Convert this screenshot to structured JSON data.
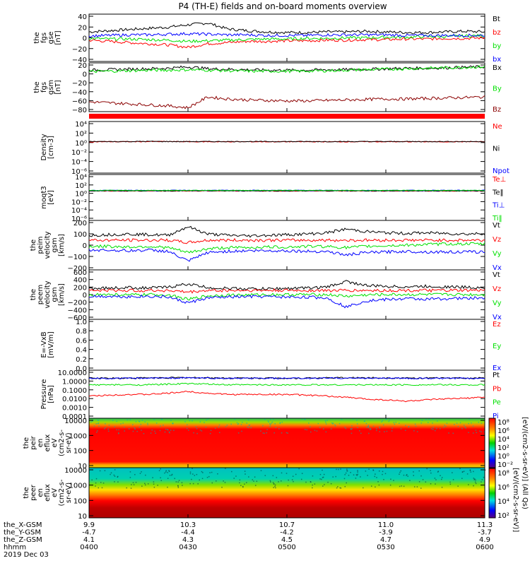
{
  "title": "P4 (TH-E) fields and on-board moments overview",
  "date_label": "2019 Dec 03",
  "x_axis": {
    "ephemeris": [
      {
        "label": "the_X-GSM",
        "values": [
          "9.9",
          "10.3",
          "10.7",
          "11.0",
          "11.3"
        ]
      },
      {
        "label": "the_Y-GSM",
        "values": [
          "-4.7",
          "-4.4",
          "-4.2",
          "-3.9",
          "-3.7"
        ]
      },
      {
        "label": "the_Z-GSM",
        "values": [
          "4.1",
          "4.3",
          "4.5",
          "4.7",
          "4.9"
        ]
      },
      {
        "label": "hhmm",
        "values": [
          "0400",
          "0430",
          "0500",
          "0530",
          "0600"
        ]
      }
    ]
  },
  "colorbar": {
    "label": "[eV/(cm2-s-sr-eV)] (All Qs)",
    "label2": "[eV/(cm2-s-sr-eV)]",
    "ticks_top": [
      "10⁸",
      "10⁶",
      "10⁴",
      "10²",
      "10⁰",
      "10⁻²"
    ],
    "ticks_bottom": [
      "10⁸",
      "10⁶",
      "10⁴",
      "10²"
    ]
  },
  "colors": {
    "black": "#000000",
    "red": "#ff0000",
    "green": "#00e000",
    "blue": "#0000ff",
    "darkred": "#8b0000"
  },
  "chart_data": [
    {
      "id": "fgs_gse",
      "type": "line",
      "ylabel": [
        "the",
        "fgs",
        "gse",
        "[nT]"
      ],
      "ylim": [
        -40,
        40
      ],
      "yticks": [
        "40",
        "20",
        "0",
        "−20",
        "−40"
      ],
      "series": [
        {
          "name": "Bt",
          "color": "black",
          "values": [
            10,
            12,
            14,
            16,
            18,
            22,
            25,
            15,
            12,
            10,
            9,
            9,
            10,
            10,
            11,
            10,
            9,
            9,
            10,
            11,
            10
          ]
        },
        {
          "name": "bz",
          "color": "red",
          "values": [
            -4,
            -6,
            -8,
            -10,
            -12,
            -16,
            -10,
            -8,
            -6,
            -6,
            -5,
            -5,
            -4,
            -4,
            -3,
            -3,
            -2,
            -2,
            -1,
            -1,
            0
          ]
        },
        {
          "name": "by",
          "color": "green",
          "values": [
            -1,
            -2,
            -2,
            -3,
            -4,
            -6,
            -5,
            -4,
            -3,
            -2,
            -2,
            -1,
            -1,
            0,
            0,
            1,
            1,
            2,
            2,
            3,
            4
          ]
        },
        {
          "name": "bx",
          "color": "blue",
          "values": [
            3,
            4,
            5,
            5,
            6,
            7,
            6,
            5,
            5,
            4,
            4,
            4,
            5,
            5,
            5,
            5,
            4,
            4,
            4,
            4,
            4
          ]
        }
      ]
    },
    {
      "id": "fgs_gsm",
      "type": "line",
      "ylabel": [
        "the",
        "fgs",
        "gsm",
        "[nT]"
      ],
      "ylim": [
        -80,
        20
      ],
      "yticks": [
        "20",
        "0",
        "−20",
        "−40",
        "−60",
        "−80"
      ],
      "series": [
        {
          "name": "Bx",
          "color": "black",
          "values": [
            5,
            6,
            7,
            8,
            9,
            12,
            8,
            7,
            6,
            5,
            5,
            5,
            6,
            6,
            7,
            8,
            9,
            9,
            10,
            11,
            12
          ]
        },
        {
          "name": "By",
          "color": "green",
          "values": [
            2,
            3,
            4,
            5,
            5,
            6,
            5,
            4,
            3,
            3,
            3,
            3,
            4,
            5,
            6,
            7,
            8,
            9,
            10,
            11,
            12
          ]
        },
        {
          "name": "Bz",
          "color": "darkred",
          "values": [
            -60,
            -62,
            -64,
            -66,
            -68,
            -72,
            -50,
            -54,
            -56,
            -57,
            -58,
            -58,
            -57,
            -56,
            -55,
            -54,
            -54,
            -53,
            -52,
            -51,
            -50
          ]
        }
      ]
    },
    {
      "id": "density",
      "type": "line",
      "ylabel": [
        "Density",
        "[cm-3]"
      ],
      "log": true,
      "ylim": [
        -6,
        4
      ],
      "yticks": [
        "10⁴",
        "10²",
        "10⁰",
        "10⁻²",
        "10⁻⁴",
        "10⁻⁶"
      ],
      "series": [
        {
          "name": "Ne",
          "color": "red",
          "values": [
            1.2,
            1.2,
            1.2,
            1.3,
            1.3,
            1.2,
            1.2,
            1.2,
            1.2,
            1.2,
            1.2,
            1.2,
            1.2,
            1.2,
            1.2,
            1.2,
            1.2,
            1.2,
            1.2,
            1.2,
            1.2
          ]
        },
        {
          "name": "Ni",
          "color": "black",
          "values": [
            1.3,
            1.3,
            1.3,
            1.4,
            1.3,
            1.3,
            1.3,
            1.3,
            1.3,
            1.3,
            1.3,
            1.3,
            1.3,
            1.3,
            1.3,
            1.3,
            1.3,
            1.3,
            1.3,
            1.3,
            1.3
          ]
        },
        {
          "name": "Npot",
          "color": "blue",
          "values": []
        }
      ]
    },
    {
      "id": "temperature",
      "type": "line",
      "ylabel": [
        "moqt3",
        "[eV]"
      ],
      "log": true,
      "ylim": [
        -6,
        4
      ],
      "yticks": [
        "10⁴",
        "10²",
        "10⁰",
        "10⁻²",
        "10⁻⁴",
        "10⁻⁶"
      ],
      "series": [
        {
          "name": "Te⊥",
          "color": "red",
          "values": [
            2.6,
            2.6,
            2.6,
            2.6,
            2.6,
            2.6,
            2.6,
            2.6,
            2.6,
            2.6,
            2.6,
            2.6,
            2.6,
            2.6,
            2.6,
            2.6,
            2.6,
            2.6,
            2.6,
            2.6,
            2.6
          ]
        },
        {
          "name": "Te‖",
          "color": "black",
          "values": [
            2.7,
            2.7,
            2.7,
            2.7,
            2.7,
            2.7,
            2.7,
            2.7,
            2.7,
            2.7,
            2.7,
            2.7,
            2.7,
            2.7,
            2.7,
            2.7,
            2.7,
            2.7,
            2.7,
            2.7,
            2.7
          ]
        },
        {
          "name": "Ti⊥",
          "color": "blue",
          "values": [
            3.5,
            3.5,
            3.5,
            3.5,
            3.5,
            3.5,
            3.5,
            3.5,
            3.5,
            3.5,
            3.5,
            3.5,
            3.5,
            3.5,
            3.5,
            3.5,
            3.5,
            3.5,
            3.5,
            3.5,
            3.5
          ]
        },
        {
          "name": "Ti‖",
          "color": "green",
          "values": [
            3.4,
            3.4,
            3.4,
            3.4,
            3.4,
            3.4,
            3.4,
            3.4,
            3.4,
            3.4,
            3.4,
            3.4,
            3.4,
            3.4,
            3.4,
            3.4,
            3.4,
            3.4,
            3.4,
            3.4,
            3.4
          ]
        }
      ]
    },
    {
      "id": "peim_velocity",
      "type": "line",
      "ylabel": [
        "the",
        "peim",
        "velocity",
        "gsm",
        "[km/s]"
      ],
      "ylim": [
        -200,
        200
      ],
      "yticks": [
        "200",
        "100",
        "0",
        "−100",
        "−200"
      ],
      "series": [
        {
          "name": "Vt",
          "color": "black",
          "values": [
            80,
            85,
            90,
            85,
            80,
            150,
            90,
            80,
            75,
            80,
            85,
            90,
            100,
            130,
            110,
            100,
            95,
            100,
            95,
            90,
            95
          ]
        },
        {
          "name": "Vz",
          "color": "red",
          "values": [
            40,
            40,
            40,
            40,
            40,
            20,
            40,
            40,
            40,
            40,
            40,
            40,
            40,
            40,
            40,
            40,
            40,
            40,
            40,
            40,
            40
          ]
        },
        {
          "name": "Vy",
          "color": "green",
          "values": [
            -10,
            -10,
            -15,
            -10,
            -20,
            -60,
            -30,
            -20,
            -20,
            -15,
            -15,
            -10,
            -10,
            -20,
            -10,
            -5,
            0,
            5,
            10,
            10,
            10
          ]
        },
        {
          "name": "Vx",
          "color": "blue",
          "values": [
            -40,
            -40,
            -45,
            -40,
            -50,
            -130,
            -60,
            -50,
            -45,
            -45,
            -45,
            -50,
            -50,
            -80,
            -60,
            -55,
            -50,
            -55,
            -55,
            -55,
            -55
          ]
        }
      ]
    },
    {
      "id": "peem_velocity",
      "type": "line",
      "ylabel": [
        "the",
        "peem",
        "velocity",
        "gsm",
        "[km/s]"
      ],
      "ylim": [
        -600,
        600
      ],
      "yticks": [
        "600",
        "400",
        "200",
        "0",
        "−200",
        "−400",
        "−600"
      ],
      "series": [
        {
          "name": "Vt",
          "color": "black",
          "values": [
            150,
            160,
            170,
            160,
            180,
            260,
            170,
            150,
            140,
            140,
            150,
            160,
            180,
            320,
            220,
            200,
            190,
            200,
            190,
            180,
            170
          ]
        },
        {
          "name": "Vz",
          "color": "red",
          "values": [
            100,
            100,
            100,
            100,
            100,
            60,
            100,
            100,
            100,
            100,
            100,
            100,
            100,
            100,
            100,
            100,
            100,
            100,
            100,
            100,
            100
          ]
        },
        {
          "name": "Vy",
          "color": "green",
          "values": [
            0,
            0,
            -10,
            0,
            -10,
            -120,
            -30,
            -10,
            -10,
            0,
            0,
            0,
            0,
            -40,
            -10,
            0,
            0,
            0,
            0,
            0,
            0
          ]
        },
        {
          "name": "Vx",
          "color": "blue",
          "values": [
            -40,
            -40,
            -50,
            -40,
            -60,
            -200,
            -80,
            -60,
            -50,
            -50,
            -60,
            -60,
            -80,
            -300,
            -150,
            -120,
            -100,
            -110,
            -100,
            -90,
            -80
          ]
        }
      ]
    },
    {
      "id": "efield",
      "type": "line",
      "ylabel": [
        "E=-VxB",
        "[mV/m]"
      ],
      "ylim": [
        0,
        1
      ],
      "yticks": [
        "1.0",
        "0.8",
        "0.6",
        "0.4",
        "0.2",
        "0.0"
      ],
      "series": [
        {
          "name": "Ez",
          "color": "red",
          "values": []
        },
        {
          "name": "Ey",
          "color": "green",
          "values": []
        },
        {
          "name": "Ex",
          "color": "blue",
          "values": []
        }
      ]
    },
    {
      "id": "pressure",
      "type": "line",
      "ylabel": [
        "Pressure",
        "[nPa]"
      ],
      "log": true,
      "ylim": [
        -4,
        1
      ],
      "yticks": [
        "10.0000",
        "1.0000",
        "0.1000",
        "0.0100",
        "0.0010",
        "0.0001"
      ],
      "series": [
        {
          "name": "Pt",
          "color": "black",
          "values": [
            1.5,
            1.5,
            1.5,
            1.6,
            1.6,
            1.7,
            1.6,
            1.5,
            1.5,
            1.5,
            1.5,
            1.5,
            1.6,
            1.6,
            1.6,
            1.6,
            1.5,
            1.5,
            1.5,
            1.5,
            1.5
          ]
        },
        {
          "name": "Pb",
          "color": "red",
          "values": [
            0.02,
            0.025,
            0.03,
            0.03,
            0.04,
            0.06,
            0.04,
            0.03,
            0.03,
            0.03,
            0.03,
            0.025,
            0.02,
            0.015,
            0.01,
            0.008,
            0.006,
            0.008,
            0.01,
            0.012,
            0.015
          ]
        },
        {
          "name": "Pe",
          "color": "green",
          "values": [
            0.3,
            0.3,
            0.3,
            0.3,
            0.35,
            0.4,
            0.35,
            0.3,
            0.3,
            0.3,
            0.3,
            0.3,
            0.3,
            0.3,
            0.3,
            0.3,
            0.3,
            0.3,
            0.3,
            0.3,
            0.3
          ]
        },
        {
          "name": "Pi",
          "color": "blue",
          "values": [
            1.4,
            1.4,
            1.4,
            1.5,
            1.5,
            1.6,
            1.5,
            1.4,
            1.4,
            1.4,
            1.4,
            1.4,
            1.5,
            1.5,
            1.5,
            1.5,
            1.4,
            1.4,
            1.4,
            1.4,
            1.4
          ]
        }
      ]
    },
    {
      "id": "peir_spectrogram",
      "type": "heatmap",
      "ylabel": [
        "the",
        "peir",
        "en",
        "eflux",
        "eV",
        "(cm2-s-",
        "sr-eV)"
      ],
      "yticks": [
        "10000",
        "1000",
        "100",
        "10"
      ]
    },
    {
      "id": "peer_spectrogram",
      "type": "heatmap",
      "ylabel": [
        "the",
        "peer",
        "en",
        "eflux",
        "eV",
        "(cm2-s-",
        "sr-eV)"
      ],
      "yticks": [
        "10000",
        "1000",
        "100",
        "10"
      ]
    }
  ]
}
